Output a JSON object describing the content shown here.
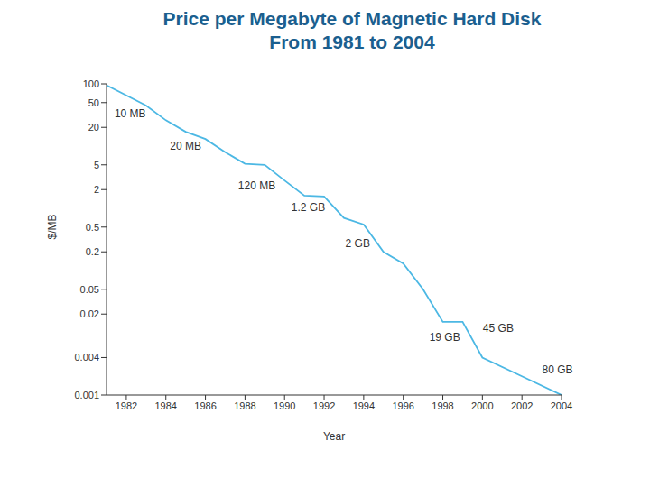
{
  "chart_data": {
    "type": "line",
    "title": "Price per Megabyte of Magnetic Hard Disk\nFrom 1981 to 2004",
    "x_label": "Year",
    "y_label": "$/MB",
    "x": [
      1981,
      1983,
      1984,
      1985,
      1986,
      1987,
      1988,
      1989,
      1990,
      1991,
      1992,
      1993,
      1994,
      1995,
      1996,
      1997,
      1998,
      1999,
      2000,
      2002,
      2004
    ],
    "values": [
      95,
      45,
      26,
      17,
      13,
      8,
      5.2,
      5,
      2.8,
      1.6,
      1.55,
      0.7,
      0.55,
      0.2,
      0.13,
      0.05,
      0.015,
      0.015,
      0.004,
      0.002,
      0.001
    ],
    "color": "#4cb8e4",
    "xlim": [
      1981,
      2004
    ],
    "xticks": [
      1982,
      1984,
      1986,
      1988,
      1990,
      1992,
      1994,
      1996,
      1998,
      2000,
      2002,
      2004
    ],
    "ylim": [
      0.001,
      100
    ],
    "yticks": [
      0.001,
      0.004,
      0.02,
      0.05,
      0.2,
      0.5,
      2,
      5,
      20,
      50,
      100
    ],
    "log": "y",
    "grid": false,
    "annotations": [
      {
        "text": "10 MB",
        "x": 1982.2,
        "y": 33
      },
      {
        "text": "20 MB",
        "x": 1985,
        "y": 10
      },
      {
        "text": "120 MB",
        "x": 1988.6,
        "y": 2.3
      },
      {
        "text": "1.2 GB",
        "x": 1991.2,
        "y": 1.06
      },
      {
        "text": "2 GB",
        "x": 1993.7,
        "y": 0.27
      },
      {
        "text": "19 GB",
        "x": 1998.1,
        "y": 0.0085
      },
      {
        "text": "45 GB",
        "x": 2000.8,
        "y": 0.012
      },
      {
        "text": "80 GB",
        "x": 2003.8,
        "y": 0.0026
      }
    ]
  }
}
